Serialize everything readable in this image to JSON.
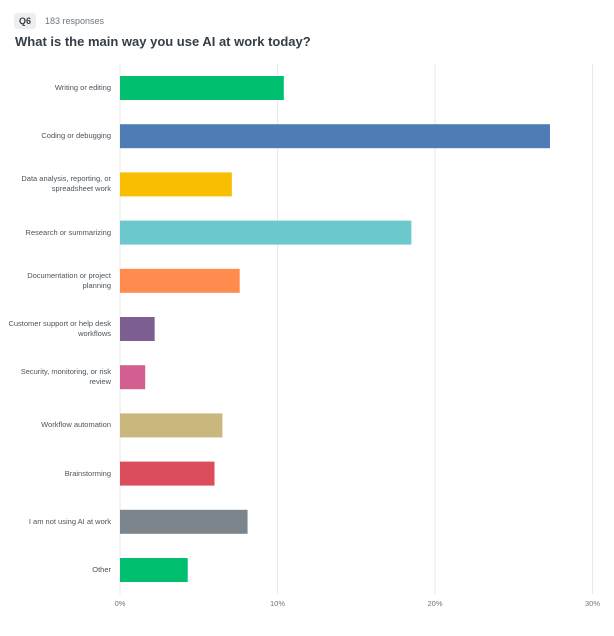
{
  "header": {
    "badge": "Q6",
    "responses": "183 responses"
  },
  "chart_data": {
    "type": "bar",
    "orientation": "horizontal",
    "title": "What is the main way you use AI at work today?",
    "categories": [
      "Writing or editing",
      "Coding or debugging",
      "Data analysis, reporting, or spreadsheet work",
      "Research or summarizing",
      "Documentation or project planning",
      "Customer support or help desk workflows",
      "Security, monitoring, or risk review",
      "Workflow automation",
      "Brainstorming",
      "I am not using AI at work",
      "Other"
    ],
    "values": [
      10.4,
      27.3,
      7.1,
      18.5,
      7.6,
      2.2,
      1.6,
      6.5,
      6.0,
      8.1,
      4.3
    ],
    "colors": [
      "#00bf6f",
      "#507cb6",
      "#f9be00",
      "#6bc8cd",
      "#ff8b4f",
      "#7d5e90",
      "#d25f90",
      "#c9b77d",
      "#db4d5c",
      "#7d858c",
      "#00bf6f"
    ],
    "xlim": [
      0,
      30
    ],
    "xticks": [
      {
        "value": 0,
        "label": "0%"
      },
      {
        "value": 10,
        "label": "10%"
      },
      {
        "value": 20,
        "label": "20%"
      },
      {
        "value": 30,
        "label": "30%"
      }
    ],
    "grid": true
  }
}
